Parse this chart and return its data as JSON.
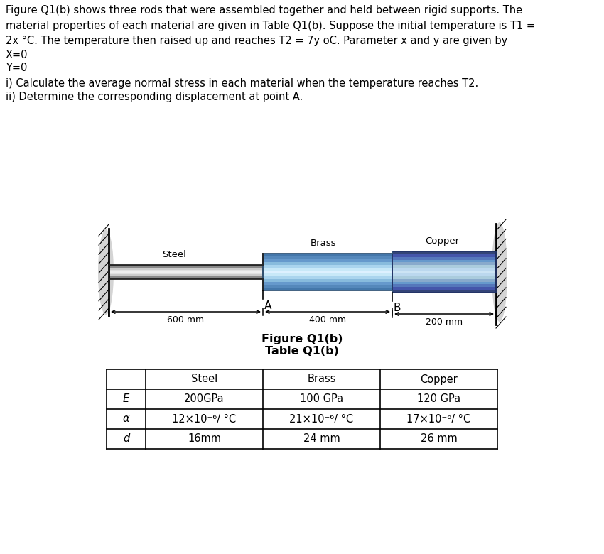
{
  "paragraph": "Figure Q1(b) shows three rods that were assembled together and held between rigid supports. The\nmaterial properties of each material are given in Table Q1(b). Suppose the initial temperature is T1 =\n2x °C. The temperature then raised up and reaches T2 = 7y oC. Parameter x and y are given by",
  "x_param": "X=0",
  "y_param": "Y=0",
  "q_i": "i) Calculate the average normal stress in each material when the temperature reaches T2.",
  "q_ii": "ii) Determine the corresponding displacement at point A.",
  "fig_label": "Figure Q1(b)",
  "table_label": "Table Q1(b)",
  "dim_600": "600 mm",
  "dim_400": "400 mm",
  "dim_200": "200 mm",
  "label_A": "A",
  "label_B": "B",
  "label_steel": "Steel",
  "label_brass": "Brass",
  "label_copper": "Copper",
  "table_headers": [
    "",
    "Steel",
    "Brass",
    "Copper"
  ],
  "table_rows": [
    [
      "E",
      "200GPa",
      "100 GPa",
      "120 GPa"
    ],
    [
      "α",
      "12×10⁻⁶/ °C",
      "21×10⁻⁶/ °C",
      "17×10⁻⁶/ °C"
    ],
    [
      "d",
      "16mm",
      "24 mm",
      "26 mm"
    ]
  ],
  "background": "#ffffff",
  "font_size_body": 10.5,
  "font_size_label": 9.5,
  "font_size_dim": 9.0,
  "font_size_table": 10.5
}
